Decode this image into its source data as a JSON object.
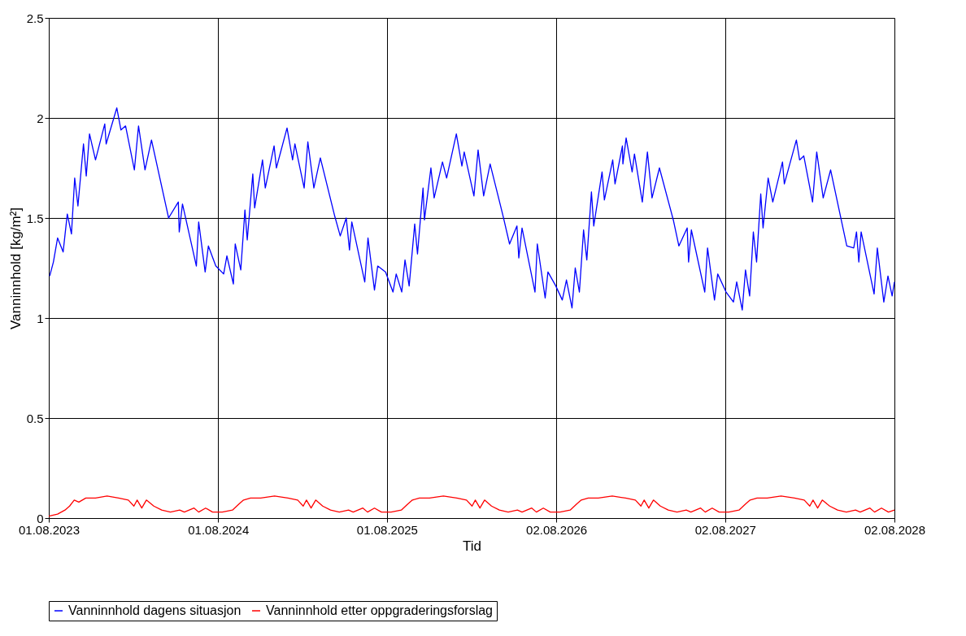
{
  "chart_data": {
    "type": "line",
    "xlabel": "Tid",
    "ylabel": "Vanninnhold [kg/m²]",
    "xlim": [
      "2023-08-01",
      "2028-08-02"
    ],
    "xticks": [
      {
        "value": "2023-08-01",
        "label": "01.08.2023"
      },
      {
        "value": "2024-08-01",
        "label": "01.08.2024"
      },
      {
        "value": "2025-08-01",
        "label": "01.08.2025"
      },
      {
        "value": "2026-08-02",
        "label": "02.08.2026"
      },
      {
        "value": "2027-08-02",
        "label": "02.08.2027"
      },
      {
        "value": "2028-08-02",
        "label": "02.08.2028"
      }
    ],
    "ylim": [
      0,
      2.5
    ],
    "yticks": [
      0,
      0.5,
      1,
      1.5,
      2,
      2.5
    ],
    "grid": true,
    "legend": "bottom",
    "marker": "none",
    "line_style": "solid",
    "series": [
      {
        "name": "Vanninnhold dagens situasjon",
        "color": "#0000ff",
        "x": [
          "2023-08-03",
          "2023-08-11",
          "2023-08-20",
          "2023-09-01",
          "2023-09-10",
          "2023-09-19",
          "2023-09-26",
          "2023-10-03",
          "2023-10-15",
          "2023-10-21",
          "2023-10-28",
          "2023-11-10",
          "2023-11-30",
          "2023-12-03",
          "2023-12-26",
          "2024-01-04",
          "2024-01-14",
          "2024-02-02",
          "2024-02-11",
          "2024-02-25",
          "2024-03-10",
          "2024-04-16",
          "2024-05-07",
          "2024-05-09",
          "2024-05-16",
          "2024-06-15",
          "2024-06-20",
          "2024-07-04",
          "2024-07-11",
          "2024-07-27",
          "2024-08-13",
          "2024-08-20",
          "2024-09-03",
          "2024-09-07",
          "2024-09-19",
          "2024-09-28",
          "2024-10-03",
          "2024-10-15",
          "2024-10-19",
          "2024-11-05",
          "2024-11-11",
          "2024-11-30",
          "2024-12-05",
          "2024-12-28",
          "2025-01-09",
          "2025-01-14",
          "2025-02-03",
          "2025-02-11",
          "2025-02-24",
          "2025-03-10",
          "2025-04-10",
          "2025-04-22",
          "2025-05-05",
          "2025-05-12",
          "2025-05-17",
          "2025-06-14",
          "2025-06-21",
          "2025-07-05",
          "2025-07-12",
          "2025-07-29",
          "2025-08-14",
          "2025-08-21",
          "2025-09-02",
          "2025-09-09",
          "2025-09-18",
          "2025-09-30",
          "2025-10-06",
          "2025-10-18",
          "2025-10-21",
          "2025-11-04",
          "2025-11-11",
          "2025-11-29",
          "2025-12-08",
          "2025-12-29",
          "2026-01-10",
          "2026-01-15",
          "2026-02-05",
          "2026-02-14",
          "2026-02-26",
          "2026-03-12",
          "2026-04-09",
          "2026-04-23",
          "2026-05-09",
          "2026-05-13",
          "2026-05-20",
          "2026-06-17",
          "2026-06-22",
          "2026-07-09",
          "2026-07-15",
          "2026-08-01",
          "2026-08-15",
          "2026-08-24",
          "2026-09-05",
          "2026-09-12",
          "2026-09-21",
          "2026-09-30",
          "2026-10-07",
          "2026-10-17",
          "2026-10-22",
          "2026-11-09",
          "2026-11-14",
          "2026-12-02",
          "2026-12-07",
          "2026-12-23",
          "2026-12-24",
          "2026-12-31",
          "2027-01-13",
          "2027-01-18",
          "2027-02-04",
          "2027-02-15",
          "2027-02-25",
          "2027-03-13",
          "2027-04-12",
          "2027-04-24",
          "2027-05-12",
          "2027-05-15",
          "2027-05-21",
          "2027-06-19",
          "2027-06-25",
          "2027-07-10",
          "2027-07-17",
          "2027-08-04",
          "2027-08-20",
          "2027-08-27",
          "2027-09-08",
          "2027-09-15",
          "2027-09-24",
          "2027-10-02",
          "2027-10-09",
          "2027-10-18",
          "2027-10-23",
          "2027-11-03",
          "2027-11-13",
          "2027-12-04",
          "2027-12-08",
          "2028-01-03",
          "2028-01-10",
          "2028-01-19",
          "2028-02-07",
          "2028-02-16",
          "2028-03-01",
          "2028-03-17",
          "2028-04-21",
          "2028-05-06",
          "2028-05-12",
          "2028-05-17",
          "2028-05-22",
          "2028-06-19",
          "2028-06-26",
          "2028-07-10",
          "2028-07-19",
          "2028-07-28",
          "2028-08-02"
        ],
        "values": [
          1.21,
          1.28,
          1.4,
          1.33,
          1.52,
          1.42,
          1.7,
          1.56,
          1.87,
          1.71,
          1.92,
          1.79,
          1.97,
          1.87,
          2.05,
          1.94,
          1.96,
          1.74,
          1.96,
          1.74,
          1.89,
          1.5,
          1.58,
          1.43,
          1.57,
          1.26,
          1.48,
          1.23,
          1.36,
          1.26,
          1.22,
          1.31,
          1.17,
          1.37,
          1.24,
          1.54,
          1.39,
          1.72,
          1.55,
          1.79,
          1.65,
          1.86,
          1.75,
          1.95,
          1.79,
          1.87,
          1.65,
          1.88,
          1.65,
          1.8,
          1.51,
          1.41,
          1.5,
          1.34,
          1.48,
          1.18,
          1.4,
          1.14,
          1.26,
          1.23,
          1.13,
          1.22,
          1.13,
          1.29,
          1.16,
          1.47,
          1.32,
          1.65,
          1.49,
          1.75,
          1.6,
          1.78,
          1.7,
          1.92,
          1.76,
          1.83,
          1.61,
          1.84,
          1.61,
          1.77,
          1.51,
          1.37,
          1.46,
          1.3,
          1.45,
          1.13,
          1.37,
          1.1,
          1.23,
          1.16,
          1.09,
          1.19,
          1.05,
          1.25,
          1.13,
          1.44,
          1.29,
          1.63,
          1.46,
          1.73,
          1.59,
          1.79,
          1.67,
          1.86,
          1.77,
          1.9,
          1.73,
          1.82,
          1.58,
          1.83,
          1.6,
          1.75,
          1.49,
          1.36,
          1.45,
          1.28,
          1.44,
          1.13,
          1.35,
          1.09,
          1.22,
          1.13,
          1.08,
          1.18,
          1.04,
          1.24,
          1.11,
          1.43,
          1.28,
          1.62,
          1.45,
          1.7,
          1.58,
          1.78,
          1.67,
          1.89,
          1.79,
          1.81,
          1.58,
          1.83,
          1.6,
          1.74,
          1.36,
          1.35,
          1.43,
          1.28,
          1.43,
          1.12,
          1.35,
          1.08,
          1.21,
          1.11,
          1.18
        ]
      },
      {
        "name": "Vanninnhold etter oppgraderingsforslag",
        "color": "#ff0000",
        "x": [
          "2023-08-01",
          "2023-08-20",
          "2023-09-05",
          "2023-09-15",
          "2023-09-25",
          "2023-10-05",
          "2023-10-20",
          "2023-11-10",
          "2023-12-05",
          "2023-12-30",
          "2024-01-20",
          "2024-02-01",
          "2024-02-08",
          "2024-02-18",
          "2024-02-28",
          "2024-03-15",
          "2024-04-01",
          "2024-04-20",
          "2024-05-10",
          "2024-05-20",
          "2024-06-10",
          "2024-06-20",
          "2024-07-05",
          "2024-07-20",
          "2024-08-10",
          "2024-09-01",
          "2024-09-15",
          "2024-09-25",
          "2024-10-10",
          "2024-11-01",
          "2024-12-01",
          "2024-12-30",
          "2025-01-20",
          "2025-02-01",
          "2025-02-08",
          "2025-02-18",
          "2025-02-28",
          "2025-03-15",
          "2025-04-01",
          "2025-04-20",
          "2025-05-10",
          "2025-05-20",
          "2025-06-10",
          "2025-06-20",
          "2025-07-05",
          "2025-07-20",
          "2025-08-10",
          "2025-09-01",
          "2025-09-15",
          "2025-09-25",
          "2025-10-10",
          "2025-11-01",
          "2025-12-01",
          "2025-12-30",
          "2026-01-20",
          "2026-02-01",
          "2026-02-08",
          "2026-02-18",
          "2026-02-28",
          "2026-03-15",
          "2026-04-01",
          "2026-04-20",
          "2026-05-10",
          "2026-05-20",
          "2026-06-10",
          "2026-06-20",
          "2026-07-05",
          "2026-07-20",
          "2026-08-10",
          "2026-09-01",
          "2026-09-15",
          "2026-09-25",
          "2026-10-10",
          "2026-11-01",
          "2026-12-01",
          "2026-12-30",
          "2027-01-20",
          "2027-02-01",
          "2027-02-08",
          "2027-02-18",
          "2027-02-28",
          "2027-03-15",
          "2027-04-01",
          "2027-04-20",
          "2027-05-10",
          "2027-05-20",
          "2027-06-10",
          "2027-06-20",
          "2027-07-05",
          "2027-07-20",
          "2027-08-10",
          "2027-09-01",
          "2027-09-15",
          "2027-09-25",
          "2027-10-10",
          "2027-11-01",
          "2027-12-01",
          "2027-12-30",
          "2028-01-20",
          "2028-02-01",
          "2028-02-08",
          "2028-02-18",
          "2028-02-28",
          "2028-03-15",
          "2028-04-01",
          "2028-04-20",
          "2028-05-10",
          "2028-05-20",
          "2028-06-10",
          "2028-06-20",
          "2028-07-05",
          "2028-07-20",
          "2028-08-02"
        ],
        "values": [
          0.01,
          0.02,
          0.04,
          0.06,
          0.09,
          0.08,
          0.1,
          0.1,
          0.11,
          0.1,
          0.09,
          0.06,
          0.09,
          0.05,
          0.09,
          0.06,
          0.04,
          0.03,
          0.04,
          0.03,
          0.05,
          0.03,
          0.05,
          0.03,
          0.03,
          0.04,
          0.07,
          0.09,
          0.1,
          0.1,
          0.11,
          0.1,
          0.09,
          0.06,
          0.09,
          0.05,
          0.09,
          0.06,
          0.04,
          0.03,
          0.04,
          0.03,
          0.05,
          0.03,
          0.05,
          0.03,
          0.03,
          0.04,
          0.07,
          0.09,
          0.1,
          0.1,
          0.11,
          0.1,
          0.09,
          0.06,
          0.09,
          0.05,
          0.09,
          0.06,
          0.04,
          0.03,
          0.04,
          0.03,
          0.05,
          0.03,
          0.05,
          0.03,
          0.03,
          0.04,
          0.07,
          0.09,
          0.1,
          0.1,
          0.11,
          0.1,
          0.09,
          0.06,
          0.09,
          0.05,
          0.09,
          0.06,
          0.04,
          0.03,
          0.04,
          0.03,
          0.05,
          0.03,
          0.05,
          0.03,
          0.03,
          0.04,
          0.07,
          0.09,
          0.1,
          0.1,
          0.11,
          0.1,
          0.09,
          0.06,
          0.09,
          0.05,
          0.09,
          0.06,
          0.04,
          0.03,
          0.04,
          0.03,
          0.05,
          0.03,
          0.05,
          0.03,
          0.04
        ]
      }
    ]
  }
}
